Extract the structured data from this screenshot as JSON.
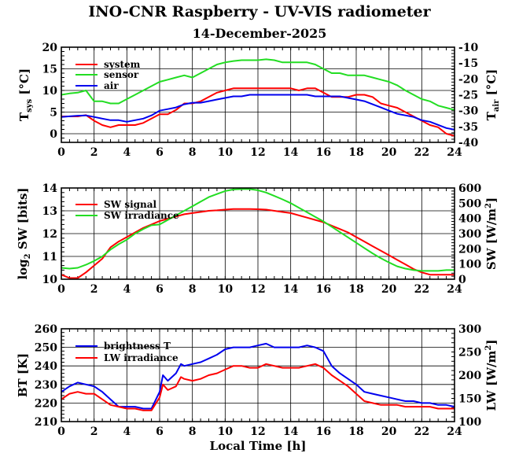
{
  "title": "INO-CNR Raspberry - UV-VIS radiometer",
  "subtitle": "14-December-2025",
  "colors": {
    "red": "#ff0000",
    "green": "#22dd22",
    "blue": "#0000ee",
    "grid": "#000000"
  },
  "chart_data": [
    {
      "type": "line",
      "name": "temperature",
      "xlabel": "",
      "xlim": [
        0,
        24
      ],
      "xticks": [
        "0",
        "2",
        "4",
        "6",
        "8",
        "10",
        "12",
        "14",
        "16",
        "18",
        "20",
        "22",
        "24"
      ],
      "ylabel": {
        "main": "T",
        "sub": "sys",
        "unit": " [°C]"
      },
      "ylim": [
        -2,
        20
      ],
      "yticks": [
        "0",
        "5",
        "10",
        "15",
        "20"
      ],
      "y2label": {
        "main": "T",
        "sub": "air",
        "unit": " [°C]"
      },
      "y2lim": [
        -40,
        -10
      ],
      "y2ticks": [
        "-40",
        "-35",
        "-30",
        "-25",
        "-20",
        "-15",
        "-10"
      ],
      "series": [
        {
          "name": "system",
          "color": "red",
          "axis": "left",
          "x": [
            0,
            0.5,
            1,
            1.5,
            2,
            2.5,
            3,
            3.5,
            4,
            4.5,
            5,
            5.5,
            6,
            6.5,
            7,
            7.5,
            8,
            8.5,
            9,
            9.5,
            10,
            10.5,
            11,
            11.5,
            12,
            12.5,
            13,
            13.5,
            14,
            14.5,
            15,
            15.5,
            16,
            16.5,
            17,
            17.5,
            18,
            18.5,
            19,
            19.5,
            20,
            20.5,
            21,
            21.5,
            22,
            22.5,
            23,
            23.5,
            24
          ],
          "y": [
            4,
            4,
            4,
            4.3,
            3,
            2,
            1.5,
            2,
            2,
            2,
            2.5,
            3.5,
            4.5,
            4.5,
            5.5,
            7,
            7,
            7.5,
            8.5,
            9.5,
            10,
            10.5,
            10.5,
            10.5,
            10.5,
            10.5,
            10.5,
            10.5,
            10.5,
            10,
            10.5,
            10.5,
            9.5,
            8.5,
            8.5,
            8.5,
            9,
            9,
            8.5,
            7,
            6.5,
            6,
            5,
            4,
            3,
            2,
            1.5,
            0,
            -0.5
          ]
        },
        {
          "name": "sensor",
          "color": "green",
          "axis": "left",
          "x": [
            0,
            0.5,
            1,
            1.5,
            2,
            2.5,
            3,
            3.5,
            4,
            4.5,
            5,
            5.5,
            6,
            6.5,
            7,
            7.5,
            8,
            8.5,
            9,
            9.5,
            10,
            10.5,
            11,
            11.5,
            12,
            12.5,
            13,
            13.5,
            14,
            14.5,
            15,
            15.5,
            16,
            16.5,
            17,
            17.5,
            18,
            18.5,
            19,
            19.5,
            20,
            20.5,
            21,
            21.5,
            22,
            22.5,
            23,
            23.5,
            24
          ],
          "y": [
            9,
            9.3,
            9.5,
            10,
            7.5,
            7.5,
            7,
            7,
            8,
            9,
            10,
            11,
            12,
            12.5,
            13,
            13.5,
            13,
            14,
            15,
            16,
            16.5,
            16.8,
            17,
            17,
            17,
            17.2,
            17,
            16.5,
            16.5,
            16.5,
            16.5,
            16,
            15,
            14,
            14,
            13.5,
            13.5,
            13.5,
            13,
            12.5,
            12,
            11.2,
            10,
            9,
            8,
            7.5,
            6.5,
            6,
            5.5
          ]
        },
        {
          "name": "air",
          "color": "blue",
          "axis": "right",
          "x": [
            0,
            0.5,
            1,
            1.5,
            2,
            2.5,
            3,
            3.5,
            4,
            4.5,
            5,
            5.5,
            6,
            6.5,
            7,
            7.5,
            8,
            8.5,
            9,
            9.5,
            10,
            10.5,
            11,
            11.5,
            12,
            12.5,
            13,
            13.5,
            14,
            14.5,
            15,
            15.5,
            16,
            16.5,
            17,
            17.5,
            18,
            18.5,
            19,
            19.5,
            20,
            20.5,
            21,
            21.5,
            22,
            22.5,
            23,
            23.5,
            24
          ],
          "y": [
            -32,
            -31.8,
            -31.6,
            -31.5,
            -32,
            -32.5,
            -33,
            -33,
            -33.5,
            -33,
            -32.5,
            -31.5,
            -30,
            -29.5,
            -29,
            -28,
            -27.5,
            -27.5,
            -27,
            -26.5,
            -26,
            -25.5,
            -25.5,
            -25,
            -25,
            -25,
            -25,
            -25,
            -25,
            -25,
            -25,
            -25.5,
            -25.5,
            -25.5,
            -25.5,
            -26,
            -26.5,
            -27,
            -28,
            -29,
            -30,
            -31,
            -31.5,
            -32,
            -33,
            -33.5,
            -34.5,
            -35.5,
            -36
          ]
        }
      ],
      "legend": [
        "system",
        "sensor",
        "air"
      ]
    },
    {
      "type": "line",
      "name": "shortwave",
      "xlabel": "",
      "xlim": [
        0,
        24
      ],
      "xticks": [
        "0",
        "2",
        "4",
        "6",
        "8",
        "10",
        "12",
        "14",
        "16",
        "18",
        "20",
        "22",
        "24"
      ],
      "ylabel": {
        "pre": "log",
        "presub": "2",
        "main": " SW [bits]"
      },
      "ylim": [
        10,
        14
      ],
      "yticks": [
        "10",
        "11",
        "12",
        "13",
        "14"
      ],
      "y2label": {
        "main": "SW [W/m",
        "sup": "2",
        "unit": "]"
      },
      "y2lim": [
        0,
        600
      ],
      "y2ticks": [
        "0",
        "100",
        "200",
        "300",
        "400",
        "500",
        "600"
      ],
      "series": [
        {
          "name": "SW signal",
          "color": "red",
          "axis": "left",
          "x": [
            0,
            0.5,
            1,
            1.5,
            2,
            2.5,
            3,
            3.5,
            4,
            4.5,
            5,
            5.5,
            6,
            6.5,
            7,
            7.5,
            8,
            8.5,
            9,
            9.5,
            10,
            10.5,
            11,
            11.5,
            12,
            12.5,
            13,
            13.5,
            14,
            14.5,
            15,
            15.5,
            16,
            16.5,
            17,
            17.5,
            18,
            18.5,
            19,
            19.5,
            20,
            20.5,
            21,
            21.5,
            22,
            22.5,
            23,
            23.5,
            24
          ],
          "y": [
            10.2,
            10.05,
            10.05,
            10.3,
            10.6,
            10.9,
            11.4,
            11.65,
            11.85,
            12.05,
            12.25,
            12.4,
            12.55,
            12.65,
            12.75,
            12.85,
            12.9,
            12.95,
            13.0,
            13.02,
            13.05,
            13.08,
            13.08,
            13.08,
            13.07,
            13.05,
            13.0,
            12.95,
            12.9,
            12.8,
            12.7,
            12.6,
            12.5,
            12.35,
            12.2,
            12.05,
            11.85,
            11.65,
            11.45,
            11.25,
            11.05,
            10.85,
            10.65,
            10.45,
            10.3,
            10.2,
            10.2,
            10.2,
            10.2
          ]
        },
        {
          "name": "SW irradiance",
          "color": "green",
          "axis": "right",
          "x": [
            0,
            0.5,
            1,
            1.5,
            2,
            2.5,
            3,
            3.5,
            4,
            4.5,
            5,
            5.5,
            6,
            6.5,
            7,
            7.5,
            8,
            8.5,
            9,
            9.5,
            10,
            10.5,
            11,
            11.5,
            12,
            12.5,
            13,
            13.5,
            14,
            14.5,
            15,
            15.5,
            16,
            16.5,
            17,
            17.5,
            18,
            18.5,
            19,
            19.5,
            20,
            20.5,
            21,
            21.5,
            22,
            22.5,
            23,
            23.5,
            24
          ],
          "y": [
            75,
            70,
            75,
            95,
            120,
            150,
            195,
            230,
            260,
            300,
            330,
            355,
            360,
            390,
            420,
            450,
            480,
            510,
            540,
            560,
            580,
            590,
            593,
            593,
            585,
            570,
            548,
            525,
            500,
            470,
            440,
            410,
            380,
            345,
            310,
            275,
            240,
            205,
            170,
            138,
            110,
            85,
            70,
            60,
            55,
            55,
            55,
            60,
            60
          ]
        }
      ],
      "legend": [
        "SW signal",
        "SW irradiance"
      ]
    },
    {
      "type": "line",
      "name": "longwave",
      "xlabel": "Local Time [h]",
      "xlim": [
        0,
        24
      ],
      "xticks": [
        "0",
        "2",
        "4",
        "6",
        "8",
        "10",
        "12",
        "14",
        "16",
        "18",
        "20",
        "22",
        "24"
      ],
      "ylabel": {
        "main": "BT [K]"
      },
      "ylim": [
        210,
        260
      ],
      "yticks": [
        "210",
        "220",
        "230",
        "240",
        "250",
        "260"
      ],
      "y2label": {
        "main": "LW [W/m",
        "sup": "2",
        "unit": "]"
      },
      "y2lim": [
        100,
        300
      ],
      "y2ticks": [
        "100",
        "150",
        "200",
        "250",
        "300"
      ],
      "series": [
        {
          "name": "brightness T",
          "color": "blue",
          "axis": "left",
          "x": [
            0,
            0.5,
            1,
            1.5,
            2,
            2.5,
            3,
            3.5,
            4,
            4.5,
            5,
            5.5,
            6,
            6.2,
            6.5,
            7,
            7.3,
            7.5,
            8,
            8.5,
            9,
            9.5,
            10,
            10.5,
            11,
            11.5,
            12,
            12.5,
            13,
            13.5,
            14,
            14.5,
            15,
            15.5,
            16,
            16.5,
            17,
            17.5,
            18,
            18.5,
            19,
            19.5,
            20,
            20.5,
            21,
            21.5,
            22,
            22.5,
            23,
            23.5,
            24
          ],
          "y": [
            226,
            229,
            231,
            230,
            229,
            226,
            222,
            218,
            218,
            218,
            217,
            217,
            226,
            235,
            232,
            236,
            241,
            240,
            241,
            242,
            244,
            246,
            249,
            250,
            250,
            250,
            251,
            252,
            250,
            250,
            250,
            250,
            251,
            250,
            248,
            240,
            236,
            233,
            230,
            226,
            225,
            224,
            223,
            222,
            221,
            221,
            220,
            220,
            219,
            219,
            218
          ]
        },
        {
          "name": "LW irradiance",
          "color": "red",
          "axis": "left",
          "x": [
            0,
            0.5,
            1,
            1.5,
            2,
            2.5,
            3,
            3.5,
            4,
            4.5,
            5,
            5.5,
            6,
            6.2,
            6.5,
            7,
            7.3,
            7.5,
            8,
            8.5,
            9,
            9.5,
            10,
            10.5,
            11,
            11.5,
            12,
            12.5,
            13,
            13.5,
            14,
            14.5,
            15,
            15.5,
            16,
            16.5,
            17,
            17.5,
            18,
            18.5,
            19,
            19.5,
            20,
            20.5,
            21,
            21.5,
            22,
            22.5,
            23,
            23.5,
            24
          ],
          "y": [
            222,
            225,
            226,
            225,
            225,
            222,
            219,
            218,
            217,
            217,
            216,
            216,
            223,
            230,
            227,
            229,
            234,
            233,
            232,
            233,
            235,
            236,
            238,
            240,
            240,
            239,
            239,
            241,
            240,
            239,
            239,
            239,
            240,
            241,
            239,
            235,
            232,
            229,
            225,
            221,
            220,
            219,
            219,
            219,
            218,
            218,
            218,
            218,
            217,
            217,
            217
          ]
        }
      ],
      "legend": [
        "brightness T",
        "LW irradiance"
      ]
    }
  ]
}
